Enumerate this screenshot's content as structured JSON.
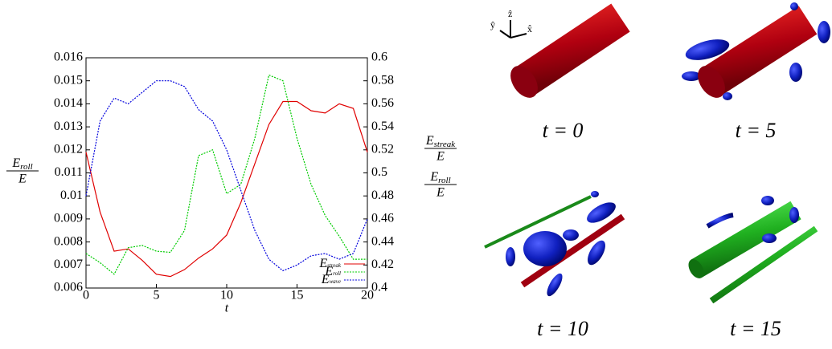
{
  "chart_data": {
    "type": "line",
    "x_label": "t",
    "y_label": {
      "base": "E",
      "sub": "roll",
      "denominator": "E"
    },
    "y2_labels": [
      {
        "base": "E",
        "sub": "streak",
        "denominator": "E"
      },
      {
        "base": "E",
        "sub": "roll",
        "denominator": "E"
      }
    ],
    "x": [
      0,
      1,
      2,
      3,
      4,
      5,
      6,
      7,
      8,
      9,
      10,
      11,
      12,
      13,
      14,
      15,
      16,
      17,
      18,
      19,
      20
    ],
    "xlim": [
      0,
      20
    ],
    "xticks": [
      0,
      5,
      10,
      15,
      20
    ],
    "ylim": [
      0.006,
      0.016
    ],
    "yticks": [
      0.006,
      0.007,
      0.008,
      0.009,
      0.01,
      0.011,
      0.012,
      0.013,
      0.014,
      0.015,
      0.016
    ],
    "y2lim": [
      0.4,
      0.6
    ],
    "y2ticks": [
      0.4,
      0.42,
      0.44,
      0.46,
      0.48,
      0.5,
      0.52,
      0.54,
      0.56,
      0.58,
      0.6
    ],
    "legend": "lower right",
    "series": [
      {
        "name": {
          "base": "E",
          "sub": "streak"
        },
        "color": "#e00000",
        "dash": false,
        "values": [
          0.0119,
          0.0093,
          0.0076,
          0.0077,
          0.0072,
          0.0066,
          0.0065,
          0.0068,
          0.0073,
          0.0077,
          0.0083,
          0.0097,
          0.0114,
          0.0131,
          0.0141,
          0.0141,
          0.0137,
          0.0136,
          0.014,
          0.0138,
          0.0119
        ]
      },
      {
        "name": {
          "base": "E",
          "sub": "roll"
        },
        "color": "#00cc00",
        "dash": true,
        "axis": "y2",
        "values": [
          0.43,
          0.422,
          0.412,
          0.435,
          0.437,
          0.432,
          0.431,
          0.45,
          0.515,
          0.52,
          0.482,
          0.49,
          0.53,
          0.585,
          0.58,
          0.53,
          0.49,
          0.463,
          0.445,
          0.425,
          0.425
        ]
      },
      {
        "name": {
          "base": "E",
          "sub": "wave"
        },
        "color": "#0000dd",
        "dash": true,
        "axis": "y2",
        "values": [
          0.48,
          0.545,
          0.565,
          0.56,
          0.57,
          0.58,
          0.58,
          0.575,
          0.555,
          0.545,
          0.52,
          0.485,
          0.45,
          0.425,
          0.415,
          0.42,
          0.428,
          0.43,
          0.425,
          0.43,
          0.46
        ]
      }
    ]
  },
  "axes_triad": [
    "ŷ",
    "ẑ",
    "x̂"
  ],
  "panels": [
    {
      "caption": "t = 0"
    },
    {
      "caption": "t = 5"
    },
    {
      "caption": "t = 10"
    },
    {
      "caption": "t = 15"
    }
  ]
}
